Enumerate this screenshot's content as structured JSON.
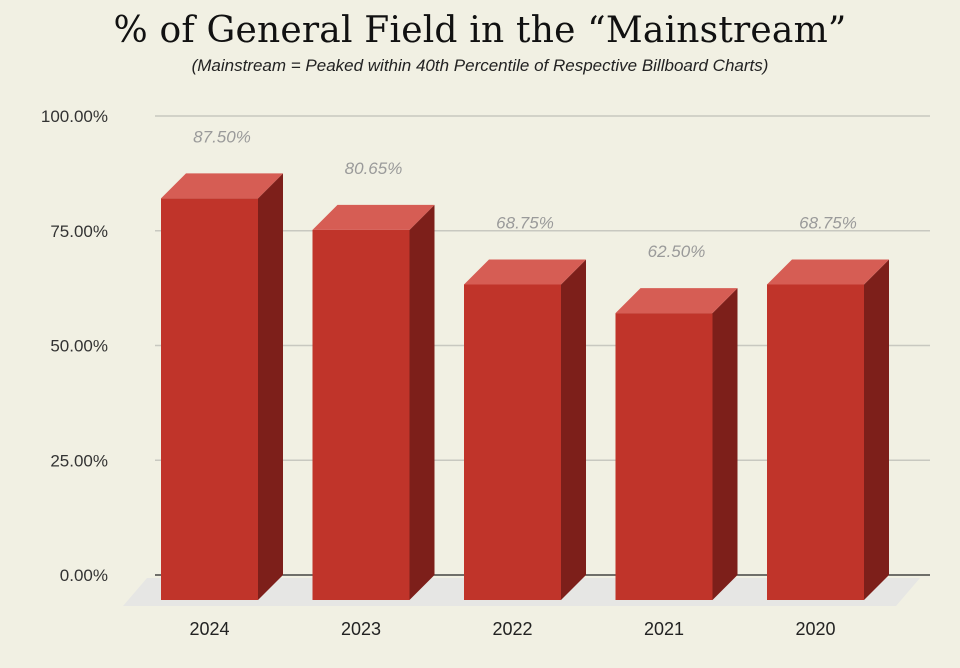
{
  "chart_data": {
    "type": "bar",
    "title": "% of General Field in the “Mainstream”",
    "subtitle": "(Mainstream = Peaked within 40th Percentile of Respective Billboard Charts)",
    "categories": [
      "2024",
      "2023",
      "2022",
      "2021",
      "2020"
    ],
    "values": [
      87.5,
      80.65,
      68.75,
      62.5,
      68.75
    ],
    "data_labels": [
      "87.50%",
      "80.65%",
      "68.75%",
      "62.50%",
      "68.75%"
    ],
    "y_ticks": [
      0,
      25,
      50,
      75,
      100
    ],
    "y_tick_labels": [
      "0.00%",
      "25.00%",
      "50.00%",
      "75.00%",
      "100.00%"
    ],
    "ylim": [
      0,
      100
    ],
    "xlabel": "",
    "ylabel": "",
    "grid": true,
    "style": "3d-bar"
  },
  "colors": {
    "background": "#f1f0e3",
    "bar_front": "#c0342a",
    "bar_top": "#d65d54",
    "bar_side": "#7d1f1a",
    "grid": "#c8c8c0",
    "floor": "#e6e6e4",
    "data_label": "#9a9a9a"
  }
}
